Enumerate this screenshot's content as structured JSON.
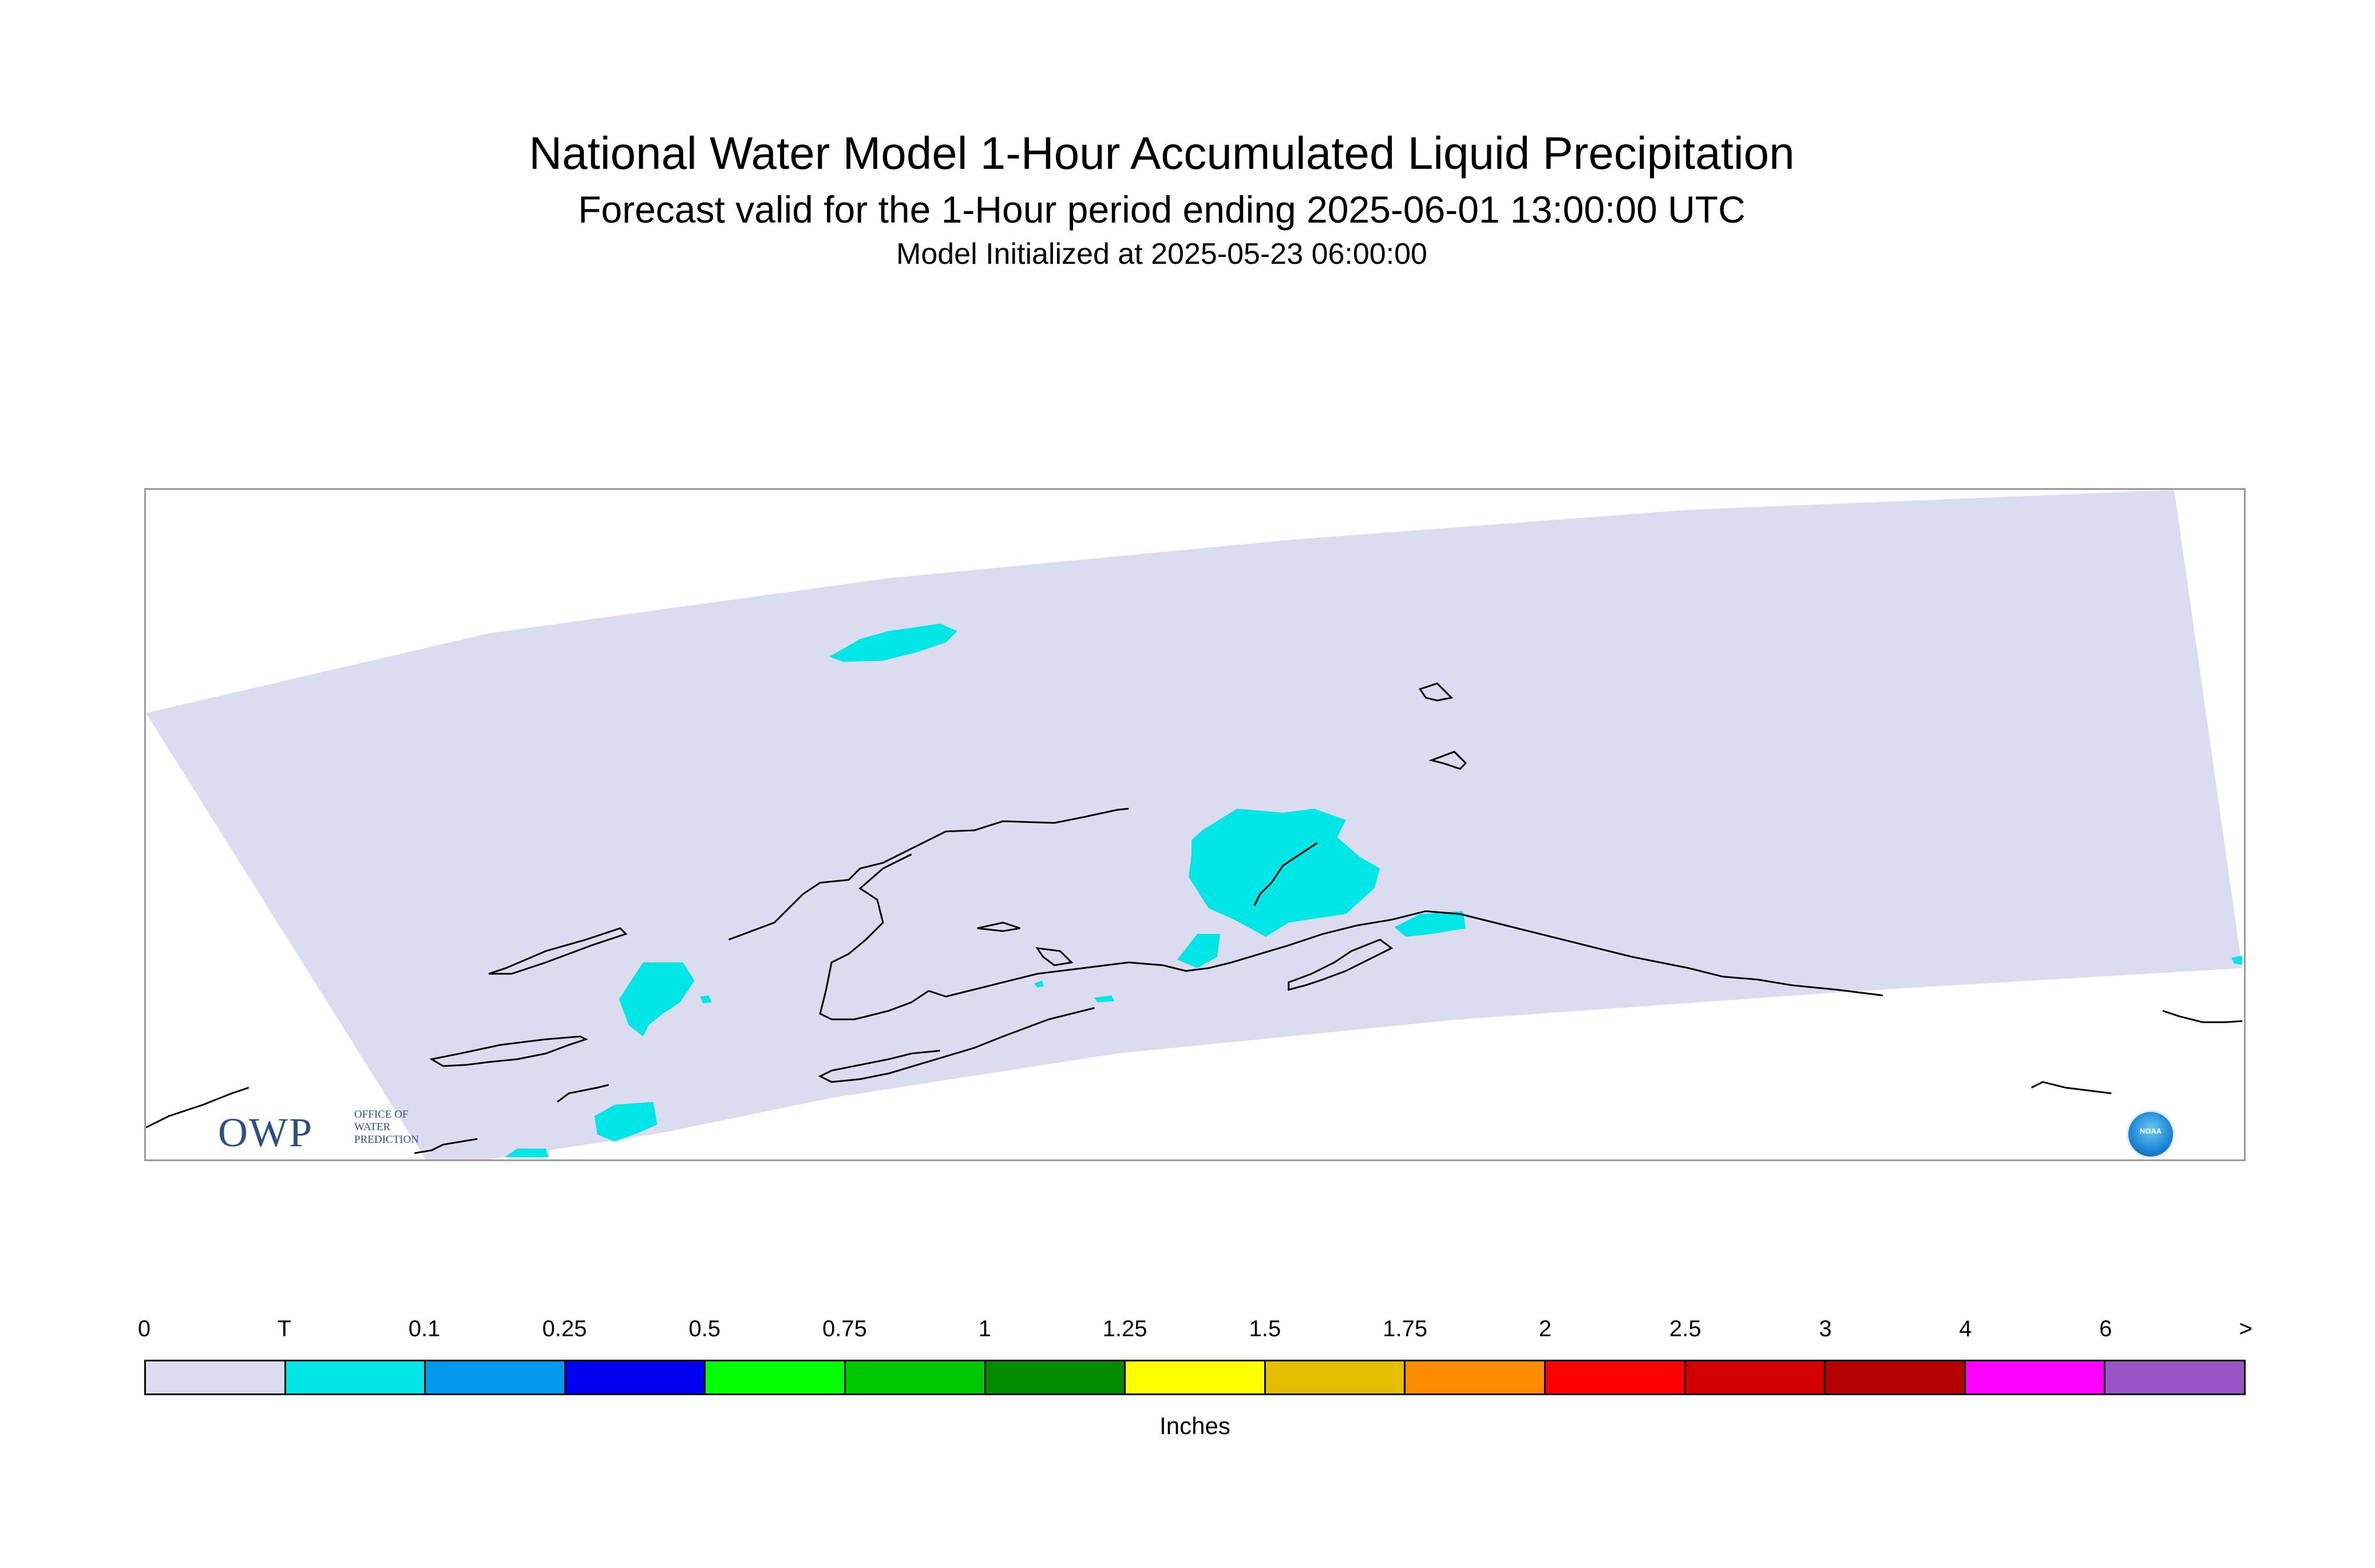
{
  "header": {
    "title": "National Water Model 1-Hour Accumulated Liquid Precipitation",
    "subtitle": "Forecast valid for the 1-Hour period ending 2025-06-01 13:00:00 UTC",
    "init_line": "Model Initialized at 2025-05-23 06:00:00"
  },
  "map": {
    "domain_color": "#dbdcef",
    "precip_color": "#00e5e5",
    "coastline_color": "#000000"
  },
  "logos": {
    "owp_letters": "OWP",
    "owp_line1": "OFFICE OF",
    "owp_line2": "WATER",
    "owp_line3": "PREDICTION",
    "noaa_label": "NOAA"
  },
  "legend": {
    "units": "Inches",
    "ticks": [
      "0",
      "T",
      "0.1",
      "0.25",
      "0.5",
      "0.75",
      "1",
      "1.25",
      "1.5",
      "1.75",
      "2",
      "2.5",
      "3",
      "4",
      "6",
      ">"
    ],
    "colors": [
      "#dbdcef",
      "#00e5e5",
      "#0099f0",
      "#0000f0",
      "#00ff00",
      "#00c800",
      "#008c00",
      "#ffff00",
      "#e6be00",
      "#ff8c00",
      "#ff0000",
      "#d20000",
      "#b40000",
      "#ff00ff",
      "#9955c8"
    ]
  }
}
